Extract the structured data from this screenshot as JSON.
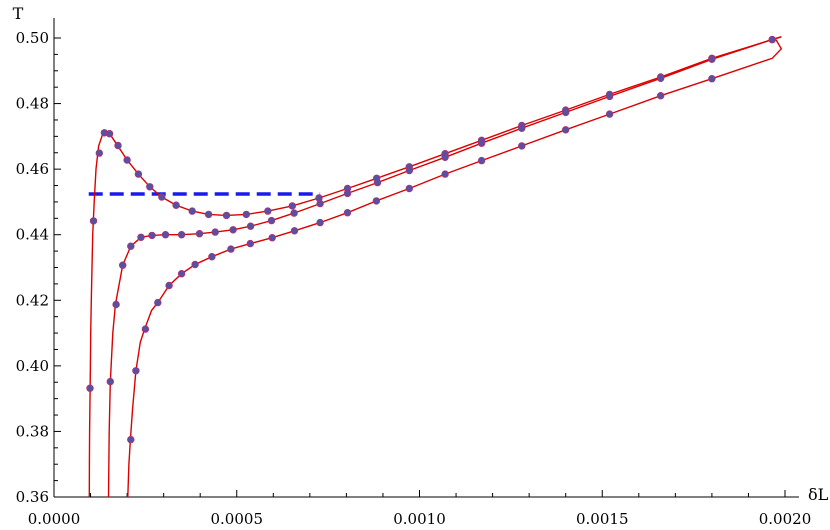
{
  "chart_data": {
    "type": "line",
    "title": "",
    "xlabel": "δL",
    "ylabel": "T",
    "xlim": [
      0.0,
      0.002
    ],
    "ylim": [
      0.36,
      0.5
    ],
    "xticks": [
      "0.0000",
      "0.0005",
      "0.0010",
      "0.0015",
      "0.0020"
    ],
    "yticks": [
      "0.36",
      "0.38",
      "0.40",
      "0.42",
      "0.44",
      "0.46",
      "0.48",
      "0.50"
    ],
    "grid": false,
    "colors": {
      "curve": "#dd0000",
      "point": "#5a4fa0",
      "dashed": "#1a1aee",
      "axis": "#000000"
    },
    "series": [
      {
        "curve": [
          [
            9.65e-05,
            0.36
          ],
          [
            9.68e-05,
            0.37
          ],
          [
            9.75e-05,
            0.38
          ],
          [
            9.85e-05,
            0.39
          ],
          [
            9.95e-05,
            0.4
          ],
          [
            0.0001005,
            0.41
          ],
          [
            0.000102,
            0.42
          ],
          [
            0.000104,
            0.43
          ],
          [
            0.000106,
            0.44
          ],
          [
            0.00011,
            0.45
          ],
          [
            0.000115,
            0.46
          ],
          [
            0.000122,
            0.467
          ],
          [
            0.000134,
            0.471
          ],
          [
            0.000152,
            0.4708
          ],
          [
            0.000175,
            0.467
          ],
          [
            0.0002,
            0.4628
          ],
          [
            0.000231,
            0.4585
          ],
          [
            0.000262,
            0.4546
          ],
          [
            0.000295,
            0.4515
          ],
          [
            0.000334,
            0.449
          ],
          [
            0.000378,
            0.4472
          ],
          [
            0.000423,
            0.4462
          ],
          [
            0.000472,
            0.4459
          ],
          [
            0.000526,
            0.4462
          ],
          [
            0.000585,
            0.4472
          ],
          [
            0.000652,
            0.4488
          ],
          [
            0.000725,
            0.4512
          ],
          [
            0.000803,
            0.4541
          ],
          [
            0.000883,
            0.4572
          ],
          [
            0.000972,
            0.4607
          ],
          [
            0.00107,
            0.4647
          ],
          [
            0.00117,
            0.4688
          ],
          [
            0.00128,
            0.4733
          ],
          [
            0.0014,
            0.478
          ],
          [
            0.00152,
            0.4828
          ],
          [
            0.00166,
            0.4881
          ],
          [
            0.0018,
            0.4938
          ],
          [
            0.001965,
            0.4995
          ],
          [
            0.00199,
            0.5004
          ]
        ],
        "points": [
          [
            9.85e-05,
            0.3932
          ],
          [
            0.000108,
            0.4442
          ],
          [
            0.000124,
            0.4649
          ],
          [
            0.000138,
            0.4711
          ],
          [
            0.000152,
            0.4708
          ],
          [
            0.000175,
            0.4672
          ],
          [
            0.0002,
            0.4628
          ],
          [
            0.000231,
            0.4585
          ],
          [
            0.000262,
            0.4546
          ],
          [
            0.000295,
            0.4515
          ],
          [
            0.000334,
            0.449
          ],
          [
            0.000378,
            0.4472
          ],
          [
            0.000423,
            0.4462
          ],
          [
            0.000472,
            0.4459
          ],
          [
            0.000526,
            0.4462
          ],
          [
            0.000585,
            0.4472
          ],
          [
            0.000652,
            0.4488
          ],
          [
            0.000725,
            0.4512
          ],
          [
            0.000803,
            0.4541
          ],
          [
            0.000883,
            0.4572
          ],
          [
            0.000972,
            0.4607
          ],
          [
            0.00107,
            0.4647
          ],
          [
            0.00117,
            0.4688
          ],
          [
            0.00128,
            0.4733
          ],
          [
            0.0014,
            0.478
          ],
          [
            0.00152,
            0.4828
          ],
          [
            0.00166,
            0.4881
          ],
          [
            0.0018,
            0.4938
          ],
          [
            0.001965,
            0.4995
          ]
        ]
      },
      {
        "curve": [
          [
            0.000149,
            0.36
          ],
          [
            0.000151,
            0.38
          ],
          [
            0.000154,
            0.395
          ],
          [
            0.000161,
            0.41
          ],
          [
            0.000168,
            0.4187
          ],
          [
            0.000188,
            0.4307
          ],
          [
            0.00021,
            0.4365
          ],
          [
            0.000238,
            0.4392
          ],
          [
            0.000268,
            0.4398
          ],
          [
            0.000305,
            0.44
          ],
          [
            0.000349,
            0.44
          ],
          [
            0.000398,
            0.4403
          ],
          [
            0.000441,
            0.4408
          ],
          [
            0.00049,
            0.4415
          ],
          [
            0.000538,
            0.4426
          ],
          [
            0.000595,
            0.4443
          ],
          [
            0.000657,
            0.4466
          ],
          [
            0.000728,
            0.4495
          ],
          [
            0.000803,
            0.4526
          ],
          [
            0.000885,
            0.4559
          ],
          [
            0.000972,
            0.4596
          ],
          [
            0.00107,
            0.4636
          ],
          [
            0.00117,
            0.4679
          ],
          [
            0.00128,
            0.4725
          ],
          [
            0.0014,
            0.4773
          ],
          [
            0.00152,
            0.4822
          ],
          [
            0.00166,
            0.4877
          ],
          [
            0.0018,
            0.4935
          ],
          [
            0.001965,
            0.4995
          ],
          [
            0.00199,
            0.5003
          ]
        ],
        "points": [
          [
            0.000154,
            0.3952
          ],
          [
            0.00017,
            0.4187
          ],
          [
            0.000188,
            0.4307
          ],
          [
            0.00021,
            0.4365
          ],
          [
            0.000238,
            0.4392
          ],
          [
            0.000268,
            0.4398
          ],
          [
            0.000305,
            0.44
          ],
          [
            0.000349,
            0.44
          ],
          [
            0.000398,
            0.4403
          ],
          [
            0.000441,
            0.4408
          ],
          [
            0.00049,
            0.4415
          ],
          [
            0.000538,
            0.4426
          ],
          [
            0.000595,
            0.4443
          ],
          [
            0.000657,
            0.4466
          ],
          [
            0.000728,
            0.4495
          ],
          [
            0.000803,
            0.4526
          ],
          [
            0.000885,
            0.4559
          ],
          [
            0.000972,
            0.4596
          ],
          [
            0.00107,
            0.4636
          ],
          [
            0.00117,
            0.4679
          ],
          [
            0.00128,
            0.4725
          ],
          [
            0.0014,
            0.4773
          ],
          [
            0.00152,
            0.4822
          ],
          [
            0.00166,
            0.4877
          ],
          [
            0.0018,
            0.4935
          ],
          [
            0.001965,
            0.4995
          ]
        ]
      },
      {
        "curve": [
          [
            0.000202,
            0.36
          ],
          [
            0.000205,
            0.37
          ],
          [
            0.000209,
            0.3775
          ],
          [
            0.000215,
            0.387
          ],
          [
            0.000224,
            0.3985
          ],
          [
            0.000236,
            0.4072
          ],
          [
            0.000248,
            0.4112
          ],
          [
            0.000267,
            0.4169
          ],
          [
            0.000284,
            0.4193
          ],
          [
            0.000315,
            0.4245
          ],
          [
            0.000349,
            0.4281
          ],
          [
            0.000386,
            0.4309
          ],
          [
            0.000432,
            0.4333
          ],
          [
            0.000484,
            0.4356
          ],
          [
            0.000537,
            0.4373
          ],
          [
            0.000597,
            0.4391
          ],
          [
            0.000658,
            0.4412
          ],
          [
            0.000728,
            0.4437
          ],
          [
            0.000803,
            0.4467
          ],
          [
            0.000882,
            0.4503
          ],
          [
            0.000972,
            0.4541
          ],
          [
            0.00107,
            0.4585
          ],
          [
            0.00117,
            0.4626
          ],
          [
            0.00128,
            0.4671
          ],
          [
            0.0014,
            0.472
          ],
          [
            0.00152,
            0.4768
          ],
          [
            0.00166,
            0.4824
          ],
          [
            0.0018,
            0.4876
          ],
          [
            0.001965,
            0.4938
          ],
          [
            0.00199,
            0.4967
          ],
          [
            0.001975,
            0.4995
          ]
        ],
        "points": [
          [
            0.00021,
            0.3775
          ],
          [
            0.000224,
            0.3985
          ],
          [
            0.00025,
            0.4112
          ],
          [
            0.000284,
            0.4193
          ],
          [
            0.000315,
            0.4245
          ],
          [
            0.000349,
            0.4281
          ],
          [
            0.000386,
            0.4309
          ],
          [
            0.000432,
            0.4333
          ],
          [
            0.000484,
            0.4356
          ],
          [
            0.000537,
            0.4373
          ],
          [
            0.000597,
            0.4391
          ],
          [
            0.000658,
            0.4412
          ],
          [
            0.000728,
            0.4437
          ],
          [
            0.000803,
            0.4467
          ],
          [
            0.000882,
            0.4503
          ],
          [
            0.000972,
            0.4541
          ],
          [
            0.00107,
            0.4585
          ],
          [
            0.00117,
            0.4626
          ],
          [
            0.00128,
            0.4671
          ],
          [
            0.0014,
            0.472
          ],
          [
            0.00152,
            0.4768
          ],
          [
            0.00166,
            0.4824
          ],
          [
            0.0018,
            0.4876
          ]
        ]
      }
    ],
    "dashed_line": {
      "x": [
        9.5e-05,
        0.000728
      ],
      "y": 0.4524
    }
  }
}
